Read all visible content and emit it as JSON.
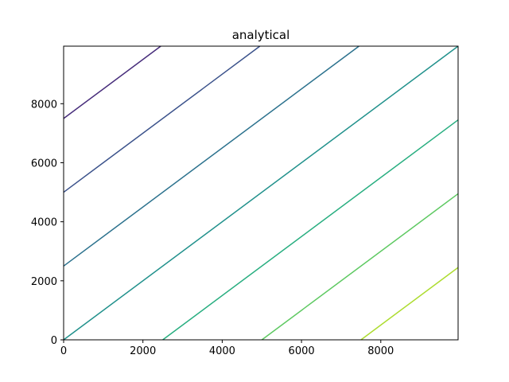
{
  "chart_data": {
    "type": "line",
    "title": "analytical",
    "xlabel": "",
    "ylabel": "",
    "xlim": [
      0,
      9950
    ],
    "ylim": [
      0,
      9950
    ],
    "grid": false,
    "x_ticks": [
      0,
      2000,
      4000,
      6000,
      8000
    ],
    "y_ticks": [
      0,
      2000,
      4000,
      6000,
      8000
    ],
    "series": [
      {
        "color": "#472d7b",
        "points": [
          [
            0,
            7500
          ],
          [
            2450,
            9950
          ]
        ]
      },
      {
        "color": "#3b528b",
        "points": [
          [
            0,
            5000
          ],
          [
            4950,
            9950
          ]
        ]
      },
      {
        "color": "#2c728e",
        "points": [
          [
            0,
            2500
          ],
          [
            7450,
            9950
          ]
        ]
      },
      {
        "color": "#21918c",
        "points": [
          [
            0,
            0
          ],
          [
            9950,
            9950
          ]
        ]
      },
      {
        "color": "#28ae80",
        "points": [
          [
            2500,
            0
          ],
          [
            9950,
            7450
          ]
        ]
      },
      {
        "color": "#5ec962",
        "points": [
          [
            5000,
            0
          ],
          [
            9950,
            4950
          ]
        ]
      },
      {
        "color": "#addc30",
        "points": [
          [
            7500,
            0
          ],
          [
            9950,
            2450
          ]
        ]
      }
    ]
  }
}
